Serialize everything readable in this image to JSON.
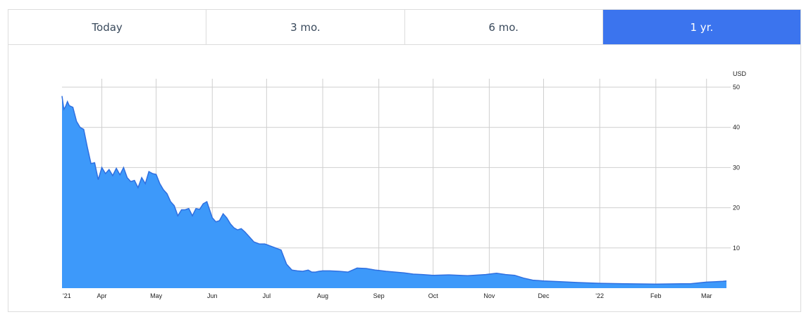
{
  "tabs": [
    {
      "label": "Today",
      "active": false
    },
    {
      "label": "3 mo.",
      "active": false
    },
    {
      "label": "6 mo.",
      "active": false
    },
    {
      "label": "1 yr.",
      "active": true
    }
  ],
  "colors": {
    "accent": "#3b74ee",
    "area_fill": "#3d99fa",
    "area_line": "#2f6fe0",
    "grid": "#cfcfcf"
  },
  "chart_data": {
    "type": "area",
    "unit_label": "USD",
    "ylim": [
      0,
      50
    ],
    "y_ticks": [
      10,
      20,
      30,
      40,
      50
    ],
    "grid": true,
    "x_labels": [
      "'21",
      "Apr",
      "May",
      "Jun",
      "Jul",
      "Aug",
      "Sep",
      "Oct",
      "Nov",
      "Dec",
      "'22",
      "Feb",
      "Mar"
    ],
    "x_label_dates": [
      "2021-03-10",
      "2021-04-01",
      "2021-05-01",
      "2021-06-01",
      "2021-07-01",
      "2021-08-01",
      "2021-09-01",
      "2021-10-01",
      "2021-11-01",
      "2021-12-01",
      "2022-01-01",
      "2022-02-01",
      "2022-03-01"
    ],
    "series": [
      {
        "x": [
          "2021-03-10",
          "2021-03-11",
          "2021-03-12",
          "2021-03-13",
          "2021-03-14",
          "2021-03-16",
          "2021-03-18",
          "2021-03-20",
          "2021-03-22",
          "2021-03-24",
          "2021-03-26",
          "2021-03-28",
          "2021-03-30",
          "2021-04-01",
          "2021-04-03",
          "2021-04-05",
          "2021-04-07",
          "2021-04-09",
          "2021-04-11",
          "2021-04-13",
          "2021-04-15",
          "2021-04-17",
          "2021-04-19",
          "2021-04-21",
          "2021-04-23",
          "2021-04-25",
          "2021-04-27",
          "2021-04-29",
          "2021-05-01",
          "2021-05-03",
          "2021-05-05",
          "2021-05-07",
          "2021-05-09",
          "2021-05-11",
          "2021-05-13",
          "2021-05-15",
          "2021-05-17",
          "2021-05-19",
          "2021-05-21",
          "2021-05-23",
          "2021-05-25",
          "2021-05-27",
          "2021-05-29",
          "2021-06-01",
          "2021-06-03",
          "2021-06-05",
          "2021-06-07",
          "2021-06-09",
          "2021-06-11",
          "2021-06-13",
          "2021-06-15",
          "2021-06-17",
          "2021-06-19",
          "2021-06-21",
          "2021-06-24",
          "2021-06-27",
          "2021-06-30",
          "2021-07-03",
          "2021-07-06",
          "2021-07-09",
          "2021-07-12",
          "2021-07-15",
          "2021-07-18",
          "2021-07-21",
          "2021-07-24",
          "2021-07-26",
          "2021-07-28",
          "2021-07-30",
          "2021-08-01",
          "2021-08-05",
          "2021-08-10",
          "2021-08-15",
          "2021-08-20",
          "2021-08-25",
          "2021-08-30",
          "2021-09-01",
          "2021-09-05",
          "2021-09-10",
          "2021-09-15",
          "2021-09-20",
          "2021-09-25",
          "2021-10-01",
          "2021-10-10",
          "2021-10-20",
          "2021-10-30",
          "2021-11-01",
          "2021-11-05",
          "2021-11-10",
          "2021-11-15",
          "2021-11-20",
          "2021-11-25",
          "2021-12-01",
          "2021-12-10",
          "2021-12-20",
          "2022-01-01",
          "2022-01-15",
          "2022-02-01",
          "2022-02-15",
          "2022-02-20",
          "2022-03-01",
          "2022-03-10",
          "2022-03-12"
        ],
        "values": [
          47.8,
          44.5,
          45.2,
          46.4,
          45.4,
          45.0,
          41.5,
          40.0,
          39.5,
          35.0,
          31.0,
          31.2,
          27.0,
          30.0,
          28.5,
          29.5,
          28.0,
          29.8,
          28.2,
          30.0,
          27.5,
          26.5,
          26.8,
          25.0,
          27.5,
          26.0,
          29.0,
          28.5,
          28.3,
          26.0,
          24.5,
          23.5,
          21.5,
          20.5,
          18.0,
          19.5,
          19.5,
          19.8,
          18.0,
          19.8,
          19.6,
          21.0,
          21.5,
          17.5,
          16.5,
          16.8,
          18.5,
          17.5,
          16.0,
          15.0,
          14.5,
          14.8,
          14.0,
          13.0,
          11.5,
          11.0,
          11.0,
          10.5,
          10.0,
          9.5,
          6.0,
          4.5,
          4.3,
          4.2,
          4.5,
          4.0,
          4.0,
          4.2,
          4.3,
          4.3,
          4.2,
          4.0,
          5.0,
          4.9,
          4.5,
          4.4,
          4.2,
          4.0,
          3.8,
          3.5,
          3.4,
          3.2,
          3.3,
          3.1,
          3.4,
          3.5,
          3.7,
          3.4,
          3.2,
          2.5,
          2.0,
          1.8,
          1.6,
          1.4,
          1.2,
          1.1,
          1.0,
          1.1,
          1.1,
          1.5,
          1.7,
          1.8
        ]
      }
    ]
  }
}
